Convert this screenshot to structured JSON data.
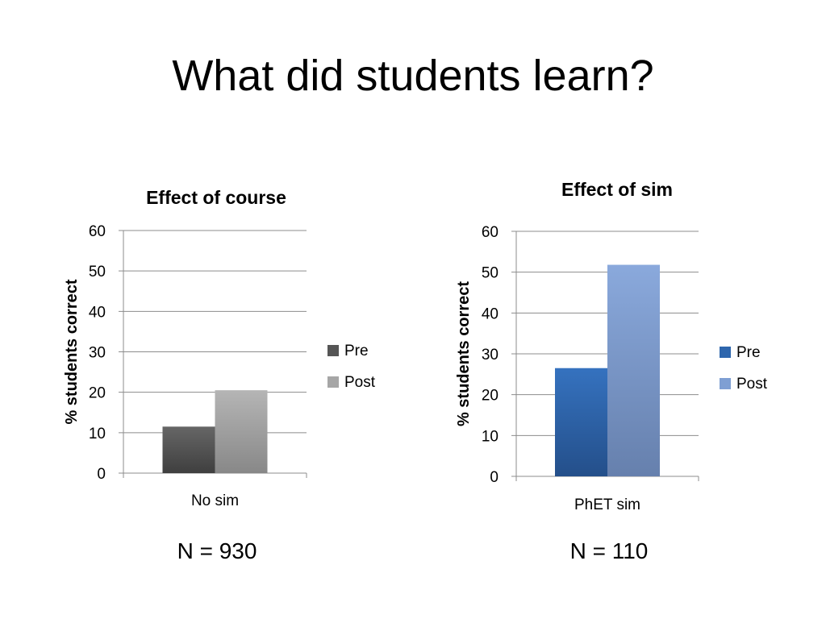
{
  "slide": {
    "title": "What did students learn?"
  },
  "chart_data": [
    {
      "type": "bar",
      "title": "Effect of course",
      "ylabel": "% students correct",
      "xlabel": "",
      "categories": [
        "No sim"
      ],
      "ylim": [
        0,
        60
      ],
      "yticks": [
        0,
        10,
        20,
        30,
        40,
        50,
        60
      ],
      "grid": true,
      "legend": "right",
      "series": [
        {
          "name": "Pre",
          "values": [
            11.5
          ],
          "color": "#555555"
        },
        {
          "name": "Post",
          "values": [
            20.5
          ],
          "color": "#a6a6a6"
        }
      ],
      "note": "N = 930"
    },
    {
      "type": "bar",
      "title": "Effect of sim",
      "ylabel": "% students correct",
      "xlabel": "",
      "categories": [
        "PhET sim"
      ],
      "ylim": [
        0,
        60
      ],
      "yticks": [
        0,
        10,
        20,
        30,
        40,
        50,
        60
      ],
      "grid": true,
      "legend": "right",
      "series": [
        {
          "name": "Pre",
          "values": [
            26.5
          ],
          "color": "#2e66ad"
        },
        {
          "name": "Post",
          "values": [
            51.8
          ],
          "color": "#7f9fd3"
        }
      ],
      "note": "N = 110"
    }
  ]
}
